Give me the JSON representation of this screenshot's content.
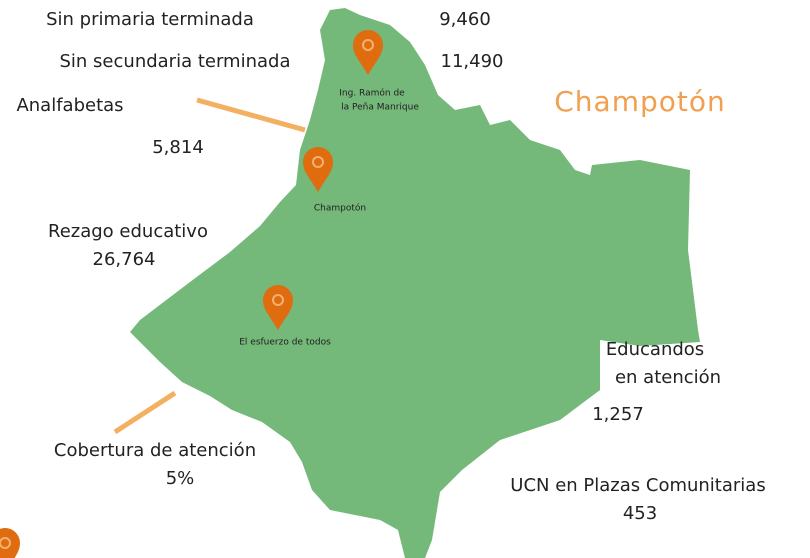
{
  "title": "Champotón",
  "indicators": [
    {
      "label": "Sin primaria terminada",
      "value": "9,460"
    },
    {
      "label": "Sin secundaria terminada",
      "value": "11,490"
    },
    {
      "label": "Analfabetas",
      "value": "5,814"
    },
    {
      "label": "Rezago educativo",
      "value": "26,764"
    },
    {
      "label": "Cobertura de atención",
      "value": "5%"
    },
    {
      "label": [
        "Educandos",
        "en atención"
      ],
      "value": "1,257"
    },
    {
      "label": "UCN en Plazas Comunitarias",
      "value": "453"
    }
  ],
  "locations": [
    {
      "label": [
        "Ing. Ramón de",
        "la Peña Manrique"
      ]
    },
    {
      "label": [
        "Champotón"
      ]
    },
    {
      "label": [
        "El esfuerzo de todos"
      ]
    }
  ]
}
